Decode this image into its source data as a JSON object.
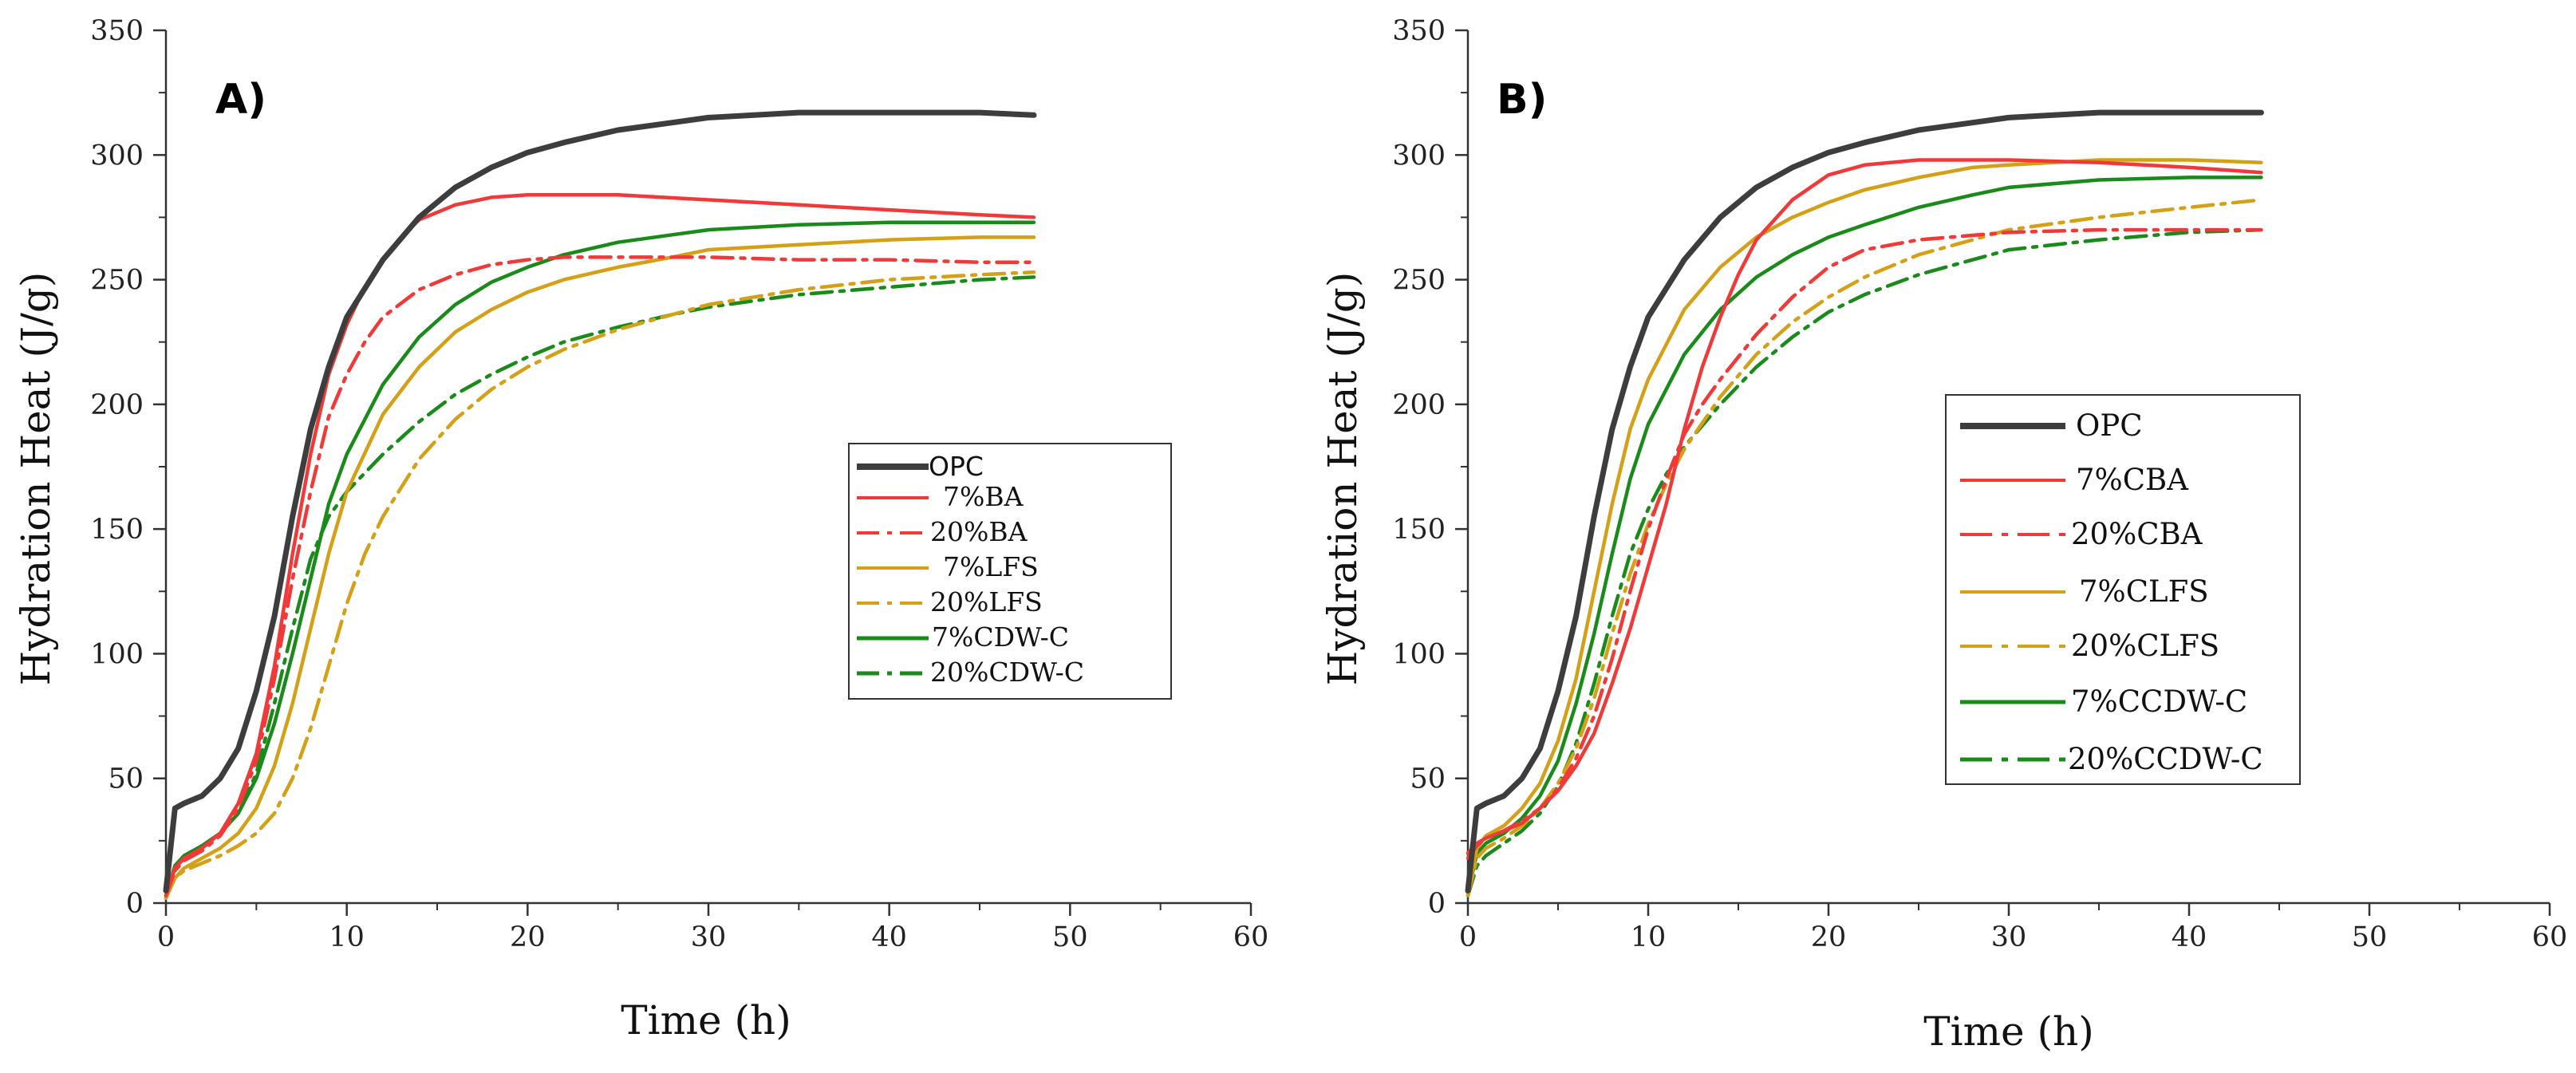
{
  "chart_data": [
    {
      "type": "line",
      "panel_label": "A)",
      "xlabel": "Time (h)",
      "ylabel": "Hydration Heat (J/g)",
      "xlim": [
        0,
        60
      ],
      "ylim": [
        0,
        350
      ],
      "xticks": [
        0,
        10,
        20,
        30,
        40,
        50,
        60
      ],
      "yticks": [
        0,
        50,
        100,
        150,
        200,
        250,
        300,
        350
      ],
      "legend_position": "center-right",
      "series": [
        {
          "name": "OPC",
          "color": "#3d3d3d",
          "dash": "solid",
          "x": [
            0,
            0.5,
            1,
            2,
            3,
            4,
            5,
            6,
            7,
            8,
            9,
            10,
            12,
            14,
            16,
            18,
            20,
            22,
            25,
            28,
            30,
            35,
            40,
            45,
            48
          ],
          "y": [
            5,
            38,
            40,
            43,
            50,
            62,
            85,
            115,
            155,
            190,
            215,
            235,
            258,
            275,
            287,
            295,
            301,
            305,
            310,
            313,
            315,
            317,
            317,
            317,
            316
          ]
        },
        {
          "name": "7%BA",
          "color": "#f03a3a",
          "dash": "solid",
          "x": [
            0,
            0.5,
            1,
            2,
            3,
            4,
            5,
            6,
            7,
            8,
            9,
            10,
            11,
            12,
            13,
            14,
            16,
            18,
            20,
            25,
            30,
            35,
            40,
            45,
            48
          ],
          "y": [
            3,
            14,
            18,
            22,
            28,
            40,
            60,
            95,
            140,
            180,
            212,
            232,
            247,
            258,
            267,
            274,
            280,
            283,
            284,
            284,
            282,
            280,
            278,
            276,
            275
          ]
        },
        {
          "name": "20%BA",
          "color": "#f03a3a",
          "dash": "dashdot",
          "x": [
            0,
            0.5,
            1,
            2,
            3,
            4,
            5,
            6,
            7,
            8,
            9,
            10,
            11,
            12,
            14,
            16,
            18,
            20,
            22,
            25,
            30,
            35,
            40,
            45,
            48
          ],
          "y": [
            3,
            13,
            17,
            21,
            27,
            38,
            57,
            90,
            130,
            165,
            195,
            212,
            225,
            235,
            246,
            252,
            256,
            258,
            259,
            259,
            259,
            258,
            258,
            257,
            257
          ]
        },
        {
          "name": "7%LFS",
          "color": "#d4a017",
          "dash": "solid",
          "x": [
            0,
            0.5,
            1,
            2,
            3,
            4,
            5,
            6,
            7,
            8,
            9,
            10,
            12,
            14,
            16,
            18,
            20,
            22,
            25,
            28,
            30,
            35,
            40,
            45,
            48
          ],
          "y": [
            2,
            10,
            14,
            18,
            22,
            28,
            38,
            55,
            80,
            110,
            140,
            165,
            196,
            215,
            229,
            238,
            245,
            250,
            255,
            259,
            262,
            264,
            266,
            267,
            267
          ]
        },
        {
          "name": "20%LFS",
          "color": "#d4a017",
          "dash": "dashdot",
          "x": [
            0,
            0.5,
            1,
            2,
            3,
            4,
            5,
            6,
            7,
            8,
            9,
            10,
            11,
            12,
            14,
            16,
            18,
            20,
            22,
            25,
            30,
            35,
            40,
            45,
            48
          ],
          "y": [
            2,
            10,
            13,
            16,
            19,
            23,
            28,
            36,
            50,
            70,
            95,
            120,
            140,
            155,
            178,
            194,
            206,
            215,
            222,
            230,
            240,
            246,
            250,
            252,
            253
          ]
        },
        {
          "name": "7%CDW-C",
          "color": "#1a8a1a",
          "dash": "solid",
          "x": [
            0,
            0.5,
            1,
            2,
            3,
            4,
            5,
            6,
            7,
            8,
            9,
            10,
            12,
            14,
            16,
            18,
            20,
            22,
            25,
            28,
            30,
            35,
            40,
            45,
            48
          ],
          "y": [
            3,
            15,
            19,
            23,
            28,
            36,
            50,
            72,
            100,
            130,
            160,
            180,
            208,
            227,
            240,
            249,
            255,
            260,
            265,
            268,
            270,
            272,
            273,
            273,
            273
          ]
        },
        {
          "name": "20%CDW-C",
          "color": "#1a8a1a",
          "dash": "dashdot",
          "x": [
            0,
            0.5,
            1,
            2,
            3,
            4,
            5,
            6,
            7,
            8,
            9,
            10,
            12,
            14,
            16,
            18,
            20,
            22,
            25,
            28,
            30,
            35,
            40,
            45,
            48
          ],
          "y": [
            2,
            13,
            18,
            22,
            28,
            36,
            52,
            80,
            110,
            138,
            155,
            165,
            180,
            193,
            204,
            212,
            219,
            225,
            231,
            236,
            239,
            244,
            247,
            250,
            251
          ]
        }
      ]
    },
    {
      "type": "line",
      "panel_label": "B)",
      "xlabel": "Time (h)",
      "ylabel": "Hydration Heat (J/g)",
      "xlim": [
        0,
        60
      ],
      "ylim": [
        0,
        350
      ],
      "xticks": [
        0,
        10,
        20,
        30,
        40,
        50,
        60
      ],
      "yticks": [
        0,
        50,
        100,
        150,
        200,
        250,
        300,
        350
      ],
      "legend_position": "center-right",
      "series": [
        {
          "name": "OPC",
          "color": "#3d3d3d",
          "dash": "solid",
          "x": [
            0,
            0.5,
            1,
            2,
            3,
            4,
            5,
            6,
            7,
            8,
            9,
            10,
            12,
            14,
            16,
            18,
            20,
            22,
            25,
            28,
            30,
            35,
            40,
            44
          ],
          "y": [
            5,
            38,
            40,
            43,
            50,
            62,
            85,
            115,
            155,
            190,
            215,
            235,
            258,
            275,
            287,
            295,
            301,
            305,
            310,
            313,
            315,
            317,
            317,
            317
          ]
        },
        {
          "name": "7%CBA",
          "color": "#f03a3a",
          "dash": "solid",
          "x": [
            0,
            0.5,
            1,
            2,
            3,
            4,
            5,
            6,
            7,
            8,
            9,
            10,
            11,
            12,
            13,
            14,
            15,
            16,
            18,
            20,
            22,
            25,
            30,
            35,
            40,
            44
          ],
          "y": [
            20,
            24,
            26,
            29,
            32,
            38,
            45,
            55,
            68,
            88,
            110,
            135,
            160,
            190,
            215,
            235,
            252,
            266,
            282,
            292,
            296,
            298,
            298,
            297,
            295,
            293
          ]
        },
        {
          "name": "20%CBA",
          "color": "#f03a3a",
          "dash": "dashdot",
          "x": [
            0,
            0.5,
            1,
            2,
            3,
            4,
            5,
            6,
            7,
            8,
            9,
            10,
            11,
            12,
            13,
            14,
            16,
            18,
            20,
            22,
            25,
            30,
            35,
            40,
            44
          ],
          "y": [
            18,
            23,
            26,
            29,
            33,
            38,
            46,
            58,
            75,
            98,
            125,
            150,
            170,
            188,
            200,
            210,
            228,
            243,
            255,
            262,
            266,
            269,
            270,
            270,
            270
          ]
        },
        {
          "name": "7%CLFS",
          "color": "#d4a017",
          "dash": "solid",
          "x": [
            0,
            0.5,
            1,
            2,
            3,
            4,
            5,
            6,
            7,
            8,
            9,
            10,
            12,
            14,
            16,
            18,
            20,
            22,
            25,
            28,
            30,
            35,
            40,
            44
          ],
          "y": [
            4,
            22,
            27,
            31,
            38,
            48,
            65,
            90,
            125,
            160,
            190,
            210,
            238,
            255,
            267,
            275,
            281,
            286,
            291,
            295,
            296,
            298,
            298,
            297
          ]
        },
        {
          "name": "20%CLFS",
          "color": "#d4a017",
          "dash": "dashdot",
          "x": [
            0,
            0.5,
            1,
            2,
            3,
            4,
            5,
            6,
            7,
            8,
            9,
            10,
            11,
            12,
            14,
            16,
            18,
            20,
            22,
            25,
            30,
            35,
            40,
            44
          ],
          "y": [
            3,
            18,
            22,
            26,
            31,
            38,
            48,
            62,
            82,
            108,
            132,
            152,
            168,
            182,
            203,
            220,
            233,
            243,
            251,
            260,
            270,
            275,
            279,
            282
          ]
        },
        {
          "name": "7%CCDW-C",
          "color": "#1a8a1a",
          "dash": "solid",
          "x": [
            0,
            0.5,
            1,
            2,
            3,
            4,
            5,
            6,
            7,
            8,
            9,
            10,
            12,
            14,
            16,
            18,
            20,
            22,
            25,
            28,
            30,
            35,
            40,
            44
          ],
          "y": [
            4,
            20,
            24,
            28,
            34,
            43,
            57,
            80,
            108,
            140,
            170,
            192,
            220,
            238,
            251,
            260,
            267,
            272,
            279,
            284,
            287,
            290,
            291,
            291
          ]
        },
        {
          "name": "20%CCDW-C",
          "color": "#1a8a1a",
          "dash": "dashdot",
          "x": [
            0,
            0.5,
            1,
            2,
            3,
            4,
            5,
            6,
            7,
            8,
            9,
            10,
            11,
            12,
            14,
            16,
            18,
            20,
            22,
            25,
            30,
            35,
            40,
            44
          ],
          "y": [
            3,
            15,
            19,
            24,
            29,
            36,
            47,
            64,
            88,
            115,
            140,
            158,
            172,
            183,
            200,
            215,
            227,
            237,
            244,
            252,
            262,
            266,
            269,
            270
          ]
        }
      ]
    }
  ]
}
